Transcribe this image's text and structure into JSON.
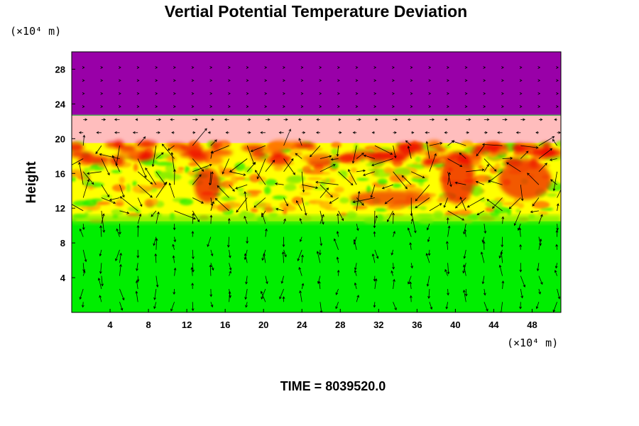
{
  "chart_data": {
    "type": "heatmap",
    "title": "Vertial Potential Temperature Deviation",
    "ylabel": "Height",
    "x_unit_label": "(×10⁴ m)",
    "y_unit_label": "(×10⁴ m)",
    "xlim": [
      0,
      51
    ],
    "ylim": [
      0,
      30
    ],
    "x_ticks": [
      4,
      8,
      12,
      16,
      20,
      24,
      28,
      32,
      36,
      40,
      44,
      48
    ],
    "y_ticks": [
      4,
      8,
      12,
      16,
      20,
      24,
      28
    ],
    "footer": "TIME = 8039520.0",
    "layers": [
      {
        "name": "lower troposphere",
        "y_from": 0,
        "y_to": 10.5,
        "color": "#00ee00"
      },
      {
        "name": "turbulent band",
        "y_from": 10.5,
        "y_to": 19.5,
        "color": "#ffff00"
      },
      {
        "name": "stable layer",
        "y_from": 19.5,
        "y_to": 22.7,
        "color": "#ffbdbd"
      },
      {
        "name": "upper layer",
        "y_from": 22.7,
        "y_to": 30,
        "color": "#9900a8"
      }
    ],
    "features": [
      {
        "name": "red band near top of turbulent layer",
        "x": [
          0,
          51
        ],
        "y": [
          17.2,
          19.4
        ],
        "color": "#ee1100"
      },
      {
        "name": "red plume x=14",
        "x": [
          12.8,
          15.5
        ],
        "y": [
          12.6,
          16.6
        ],
        "color": "#ee1100"
      },
      {
        "name": "red streak x=31",
        "x": [
          29,
          37.5
        ],
        "y": [
          12.3,
          14
        ],
        "color": "#ee3300"
      },
      {
        "name": "red plume x=40",
        "x": [
          38.5,
          42
        ],
        "y": [
          12.5,
          18.5
        ],
        "color": "#ee1100"
      },
      {
        "name": "red blob x=46",
        "x": [
          44.5,
          50
        ],
        "y": [
          13,
          17.5
        ],
        "color": "#ee2200"
      }
    ],
    "vectors": "wind arrows on regular grid, strongest in 11-20 band"
  }
}
